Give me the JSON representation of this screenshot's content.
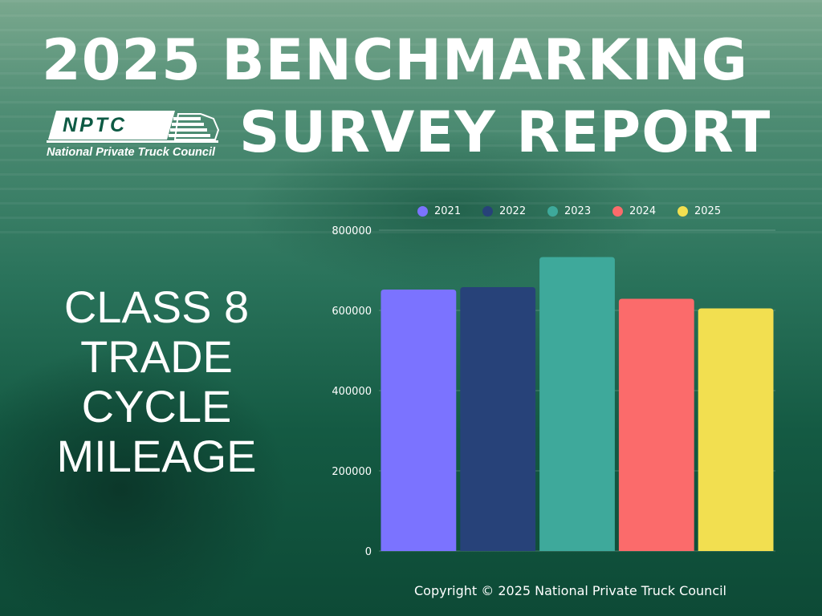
{
  "title": {
    "line1": "2025 BENCHMARKING",
    "line2": "SURVEY REPORT"
  },
  "logo": {
    "abbr": "NPTC",
    "name": "National Private Truck Council"
  },
  "side_title": {
    "lines": [
      "CLASS 8",
      "TRADE",
      "CYCLE",
      "MILEAGE"
    ]
  },
  "chart_data": {
    "type": "bar",
    "categories": [
      "2021",
      "2022",
      "2023",
      "2024",
      "2025"
    ],
    "values": [
      652000,
      658000,
      733000,
      629000,
      605000
    ],
    "colors": [
      "#7b73ff",
      "#274279",
      "#3ea99b",
      "#fb6b6b",
      "#f2df50"
    ],
    "ylim": [
      0,
      800000
    ],
    "yticks": [
      "0",
      "200000",
      "400000",
      "600000",
      "800000"
    ],
    "legend": [
      "2021",
      "2022",
      "2023",
      "2024",
      "2025"
    ],
    "legend_position": "top",
    "grid": true
  },
  "footer": {
    "copyright": "Copyright © 2025 National Private Truck Council"
  }
}
